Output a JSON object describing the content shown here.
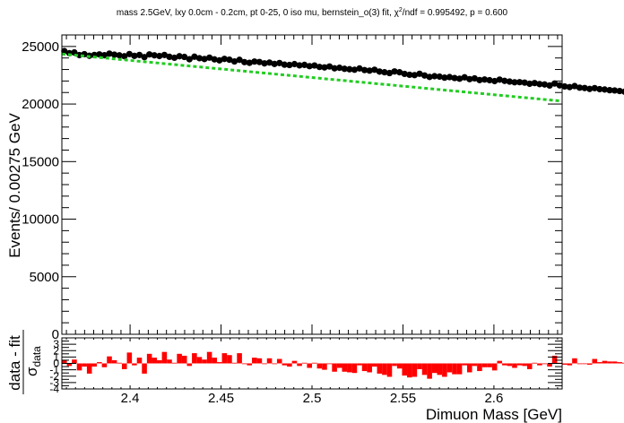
{
  "chart_data": {
    "type": "scatter",
    "title": "mass 2.5GeV, lxy 0.0cm - 0.2cm, pt 0-25, 0 iso mu, bernstein_o(3) fit, χ²/ndf = 0.995492, p = 0.600",
    "title_parts": {
      "before": "mass 2.5GeV, lxy 0.0cm - 0.2cm, pt 0-25, 0 iso mu, bernstein_o(3) fit, χ",
      "sup": "2",
      "after": "/ndf = 0.995492, p = 0.600"
    },
    "xlabel": "Dimuon Mass [GeV]",
    "ylabel": "Events/ 0.00275 GeV",
    "ratio_ylabel_num": "data - fit",
    "ratio_ylabel_den": "σ",
    "ratio_ylabel_den_sub": "data",
    "xlim": [
      2.3625,
      2.6375
    ],
    "ylim": [
      0,
      26000
    ],
    "ratio_ylim": [
      -4,
      4
    ],
    "x_ticks": [
      "2.4",
      "2.45",
      "2.5",
      "2.55",
      "2.6"
    ],
    "y_ticks": [
      "0",
      "5000",
      "10000",
      "15000",
      "20000",
      "25000"
    ],
    "ratio_y_ticks": [
      "-4",
      "-3",
      "-2",
      "-1",
      "0",
      "1",
      "2",
      "3"
    ],
    "fit": {
      "y_start": 24350,
      "y_end": 20250,
      "color": "#22cc22",
      "style": "dashed"
    },
    "data_color": "#000000",
    "pull_color": "#ff0000",
    "bin_width": 0.00275,
    "series": [
      {
        "name": "data",
        "x_start": 2.363875,
        "x_step": 0.00275,
        "y": [
          24600,
          24420,
          24480,
          24250,
          24330,
          24190,
          24260,
          24310,
          24240,
          24380,
          24290,
          24230,
          24150,
          24340,
          24180,
          24260,
          24080,
          24310,
          24230,
          24170,
          24260,
          24100,
          24020,
          24150,
          24090,
          23890,
          24110,
          23980,
          23910,
          24030,
          23880,
          23790,
          23920,
          23850,
          23700,
          23840,
          23640,
          23580,
          23690,
          23650,
          23530,
          23600,
          23480,
          23560,
          23420,
          23390,
          23470,
          23360,
          23400,
          23290,
          23350,
          23220,
          23180,
          23260,
          23100,
          23150,
          23060,
          23020,
          22980,
          23090,
          22950,
          22900,
          22980,
          22820,
          22760,
          22690,
          22830,
          22760,
          22620,
          22540,
          22510,
          22630,
          22480,
          22350,
          22420,
          22380,
          22290,
          22340,
          22260,
          22200,
          22320,
          22160,
          22230,
          22080,
          22130,
          22070,
          21990,
          22120,
          22010,
          21950,
          21890,
          21900,
          21860,
          21760,
          21820,
          21730,
          21700,
          21610,
          21780,
          21620,
          21530,
          21470,
          21560,
          21420,
          21390,
          21310,
          21380,
          21290,
          21260,
          21200,
          21180,
          21130,
          21070,
          21000,
          20950,
          21030,
          20880,
          20760,
          20910,
          20870,
          20760,
          20690,
          20610,
          20550,
          20520,
          20430,
          20510,
          20230,
          20030,
          20160,
          20310,
          20530,
          20390,
          20240,
          20160
        ]
      },
      {
        "name": "pull",
        "y": [
          0.5,
          -0.4,
          0.6,
          -1.1,
          -0.5,
          -1.6,
          -0.5,
          0.2,
          -0.6,
          1.1,
          0.5,
          0.1,
          -0.9,
          1.7,
          -0.3,
          0.9,
          -1.6,
          1.5,
          0.9,
          0.5,
          1.8,
          0.6,
          0.1,
          1.5,
          1.2,
          -0.4,
          1.6,
          1.0,
          0.6,
          1.8,
          0.9,
          0.2,
          1.6,
          1.3,
          0.1,
          1.6,
          0.0,
          -0.3,
          0.9,
          0.8,
          -0.1,
          0.8,
          -0.1,
          0.7,
          -0.3,
          -0.5,
          0.4,
          -0.4,
          0.1,
          -0.7,
          0.1,
          -0.8,
          -1.0,
          -0.1,
          -1.3,
          -0.7,
          -1.3,
          -1.4,
          -1.5,
          -0.3,
          -1.2,
          -1.4,
          -0.5,
          -1.6,
          -1.8,
          -2.1,
          -0.4,
          -0.8,
          -1.9,
          -2.2,
          -2.1,
          -0.9,
          -1.8,
          -2.4,
          -1.5,
          -1.8,
          -2.1,
          -1.4,
          -1.7,
          -1.7,
          -0.3,
          -1.4,
          -0.4,
          -1.2,
          -0.6,
          -0.6,
          -1.1,
          0.4,
          -0.3,
          -0.4,
          -0.7,
          -0.3,
          -0.4,
          -0.9,
          0.1,
          -0.3,
          -0.1,
          -0.5,
          1.2,
          0.1,
          -0.2,
          -0.3,
          0.8,
          -0.1,
          0.0,
          -0.2,
          0.7,
          0.2,
          0.4,
          0.3,
          0.3,
          0.2,
          0.1,
          -0.1,
          -0.2,
          0.5,
          -0.3,
          -1.1,
          0.6,
          0.6,
          0.0,
          -0.2,
          -0.5,
          -0.6,
          -0.5,
          -0.9,
          -0.1,
          -2.0,
          -3.2,
          -1.8,
          -0.3,
          1.8,
          1.0,
          0.0,
          -0.4
        ]
      }
    ]
  }
}
